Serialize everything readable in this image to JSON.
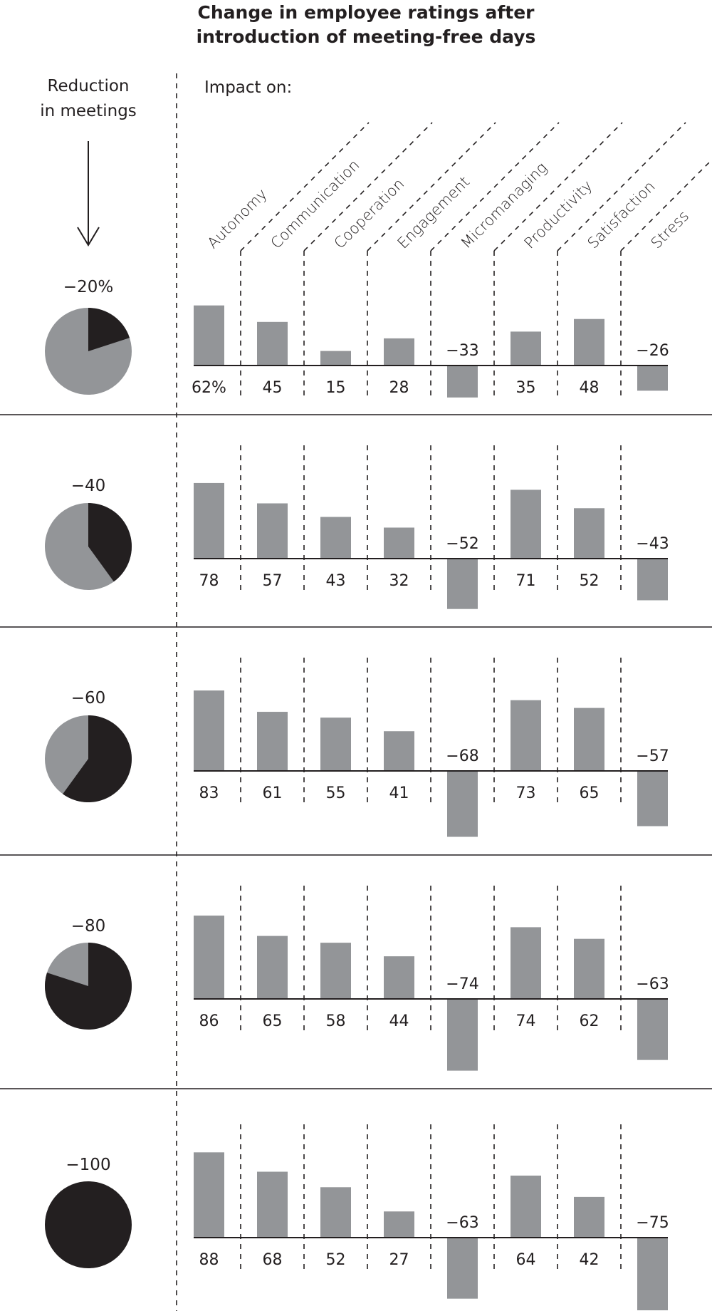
{
  "chart_data": {
    "type": "bar",
    "title": "Change in employee ratings after introduction of meeting-free days",
    "title_lines": [
      "Change in employee ratings after",
      "introduction of meeting-free days"
    ],
    "row_axis_label": "Reduction in meetings",
    "row_axis_label_lines": [
      "Reduction",
      "in meetings"
    ],
    "column_axis_label": "Impact on:",
    "categories": [
      "Autonomy",
      "Communication",
      "Cooperation",
      "Engagement",
      "Micromanaging",
      "Productivity",
      "Satisfaction",
      "Stress"
    ],
    "unit": "%",
    "series": [
      {
        "name": "-20%",
        "reduction": 20,
        "label": "−20%",
        "values": [
          62,
          45,
          15,
          28,
          -33,
          35,
          48,
          -26
        ],
        "value_labels": [
          "62%",
          "45",
          "15",
          "28",
          "−33",
          "35",
          "48",
          "−26"
        ]
      },
      {
        "name": "-40",
        "reduction": 40,
        "label": "−40",
        "values": [
          78,
          57,
          43,
          32,
          -52,
          71,
          52,
          -43
        ],
        "value_labels": [
          "78",
          "57",
          "43",
          "32",
          "−52",
          "71",
          "52",
          "−43"
        ]
      },
      {
        "name": "-60",
        "reduction": 60,
        "label": "−60",
        "values": [
          83,
          61,
          55,
          41,
          -68,
          73,
          65,
          -57
        ],
        "value_labels": [
          "83",
          "61",
          "55",
          "41",
          "−68",
          "73",
          "65",
          "−57"
        ]
      },
      {
        "name": "-80",
        "reduction": 80,
        "label": "−80",
        "values": [
          86,
          65,
          58,
          44,
          -74,
          74,
          62,
          -63
        ],
        "value_labels": [
          "86",
          "65",
          "58",
          "44",
          "−74",
          "74",
          "62",
          "−63"
        ]
      },
      {
        "name": "-100",
        "reduction": 100,
        "label": "−100",
        "values": [
          88,
          68,
          52,
          27,
          -63,
          64,
          42,
          -75
        ],
        "value_labels": [
          "88",
          "68",
          "52",
          "27",
          "−63",
          "64",
          "42",
          "−75"
        ]
      }
    ],
    "grid": false,
    "legend": null
  },
  "colors": {
    "ink": "#231f20",
    "bar": "#939598",
    "pie_remaining": "#939598",
    "pie_reduced": "#231f20",
    "background": "#ffffff"
  },
  "icons": {
    "arrow": "down-arrow-icon"
  }
}
